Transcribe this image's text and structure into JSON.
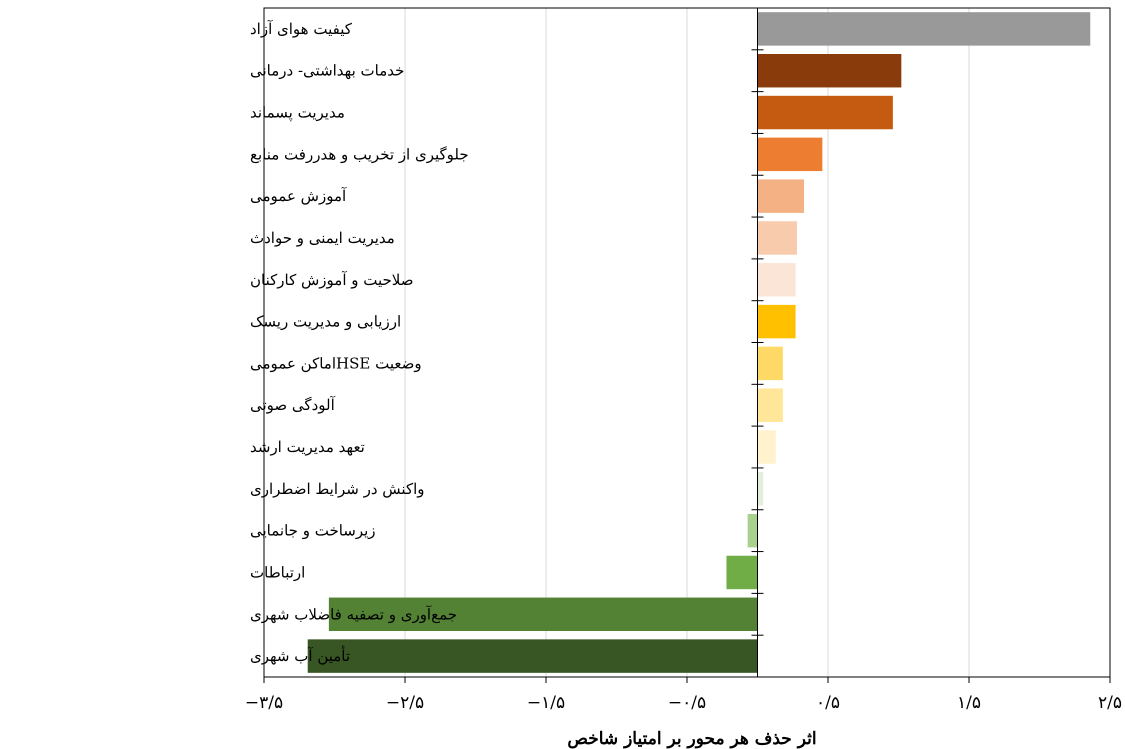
{
  "chart_data": {
    "type": "bar",
    "orientation": "horizontal",
    "title": "",
    "xlabel": "اثر حذف هر محور  بر امتیاز شاخص",
    "ylabel": "",
    "xlim": [
      -3.5,
      2.5
    ],
    "x_ticks": [
      -3.5,
      -2.5,
      -1.5,
      -0.5,
      0.5,
      1.5,
      2.5
    ],
    "x_tick_labels": [
      "−۳/۵",
      "−۲/۵",
      "−۱/۵",
      "−۰/۵",
      "۰/۵",
      "۱/۵",
      "۲/۵"
    ],
    "grid": "vertical",
    "legend": "none",
    "categories": [
      "کیفیت هوای آزاد",
      "خدمات بهداشتی- درمانی",
      "مدیریت پسماند",
      "جلوگیری از تخریب و هدررفت منابع",
      "آموزش عمومی",
      "مدیریت ایمنی و حوادث",
      "صلاحیت و آموزش کارکنان",
      "ارزیابی و مدیریت ریسک",
      "وضعیت  HSEاماکن عمومی",
      "آلودگی صوتی",
      "تعهد مدیریت ارشد",
      "واکنش در شرایط اضطراری",
      "زیرساخت و جانمایی",
      "ارتباطات",
      "جمع‌آوری و تصفیه فاضلاب شهری",
      "تأمین آب شهری"
    ],
    "values": [
      2.36,
      1.02,
      0.96,
      0.46,
      0.33,
      0.28,
      0.27,
      0.27,
      0.18,
      0.18,
      0.13,
      0.04,
      -0.07,
      -0.22,
      -3.04,
      -3.19
    ],
    "colors": [
      "#999999",
      "#8a3b0c",
      "#c55a11",
      "#ed7d31",
      "#f4b183",
      "#f8cbad",
      "#fbe5d6",
      "#ffc000",
      "#ffd966",
      "#ffe699",
      "#fff2cc",
      "#e2f0d9",
      "#a9d18e",
      "#70ad47",
      "#548235",
      "#375623"
    ]
  }
}
